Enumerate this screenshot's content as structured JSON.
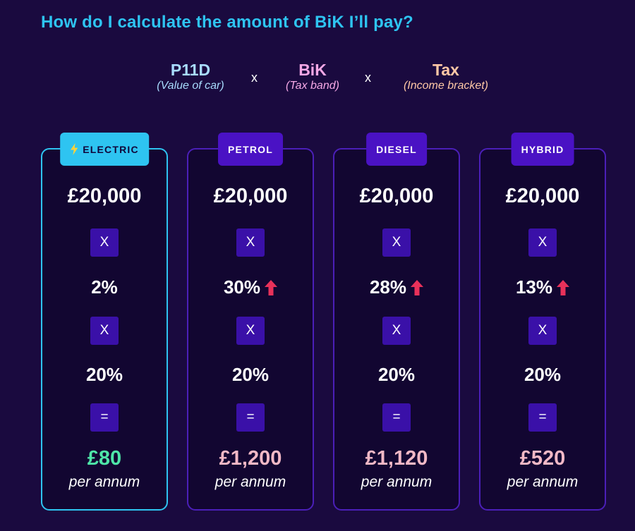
{
  "title": "How do I calculate the amount of BiK I’ll pay?",
  "formula": {
    "terms": [
      {
        "label": "P11D",
        "sub": "(Value of car)",
        "color": "#a9dcff"
      },
      {
        "label": "BiK",
        "sub": "(Tax band)",
        "color": "#f5a8e6"
      },
      {
        "label": "Tax",
        "sub": "(Income bracket)",
        "color": "#ffc8a6"
      }
    ],
    "operator": "x"
  },
  "cards": [
    {
      "badge": "ELECTRIC",
      "price": "£20,000",
      "mult1": "X",
      "bik": "2%",
      "bik_increase": false,
      "mult2": "X",
      "tax": "20%",
      "equals": "=",
      "result": "£80",
      "period": "per annum"
    },
    {
      "badge": "PETROL",
      "price": "£20,000",
      "mult1": "X",
      "bik": "30%",
      "bik_increase": true,
      "mult2": "X",
      "tax": "20%",
      "equals": "=",
      "result": "£1,200",
      "period": "per annum"
    },
    {
      "badge": "DIESEL",
      "price": "£20,000",
      "mult1": "X",
      "bik": "28%",
      "bik_increase": true,
      "mult2": "X",
      "tax": "20%",
      "equals": "=",
      "result": "£1,120",
      "period": "per annum"
    },
    {
      "badge": "HYBRID",
      "price": "£20,000",
      "mult1": "X",
      "bik": "13%",
      "bik_increase": true,
      "mult2": "X",
      "tax": "20%",
      "equals": "=",
      "result": "£520",
      "period": "per annum"
    }
  ],
  "icons": {
    "electric_badge": "lightning-bolt-icon",
    "increase": "up-arrow-icon"
  },
  "colors": {
    "accent": "#2ec4f1",
    "increase": "#e8315a",
    "electric_result": "#4ee5a8",
    "other_result": "#f2b8c6"
  }
}
